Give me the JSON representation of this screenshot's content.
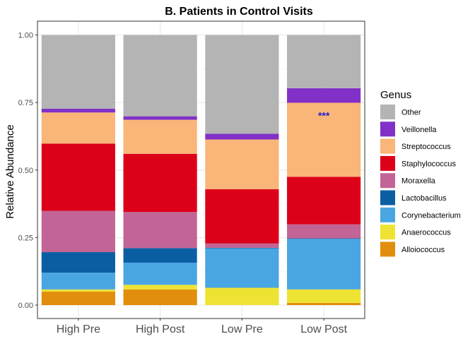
{
  "chart_data": {
    "type": "bar",
    "stacked": true,
    "title": "B. Patients in Control Visits",
    "xlabel": "",
    "ylabel": "Relative Abundance",
    "ylim": [
      0,
      1
    ],
    "yticks": [
      "0.00",
      "0.25",
      "0.50",
      "0.75",
      "1.00"
    ],
    "categories": [
      "High Pre",
      "High Post",
      "Low Pre",
      "Low Post"
    ],
    "legend_title": "Genus",
    "legend_position": "right",
    "grid": true,
    "series": [
      {
        "name": "Alloiococcus",
        "color": "#E08E0B",
        "values": [
          0.05,
          0.058,
          0.0,
          0.008
        ]
      },
      {
        "name": "Anaerococcus",
        "color": "#EEE332",
        "values": [
          0.008,
          0.017,
          0.064,
          0.05
        ]
      },
      {
        "name": "Corynebacterium",
        "color": "#4AA6E2",
        "values": [
          0.062,
          0.082,
          0.146,
          0.187
        ]
      },
      {
        "name": "Lactobacillus",
        "color": "#0C5EA3",
        "values": [
          0.076,
          0.054,
          0.002,
          0.002
        ]
      },
      {
        "name": "Moraxella",
        "color": "#C26596",
        "values": [
          0.153,
          0.134,
          0.016,
          0.052
        ]
      },
      {
        "name": "Staphylococcus",
        "color": "#DD0019",
        "values": [
          0.249,
          0.215,
          0.201,
          0.176
        ]
      },
      {
        "name": "Streptococcus",
        "color": "#FAB578",
        "values": [
          0.115,
          0.126,
          0.184,
          0.274
        ]
      },
      {
        "name": "Veillonella",
        "color": "#8131C7",
        "values": [
          0.014,
          0.013,
          0.021,
          0.054
        ]
      },
      {
        "name": "Other",
        "color": "#B4B4B4",
        "values": [
          0.273,
          0.301,
          0.366,
          0.197
        ]
      }
    ],
    "annotations": [
      {
        "text": "***",
        "category": "Low Post",
        "y": 0.71
      }
    ]
  }
}
